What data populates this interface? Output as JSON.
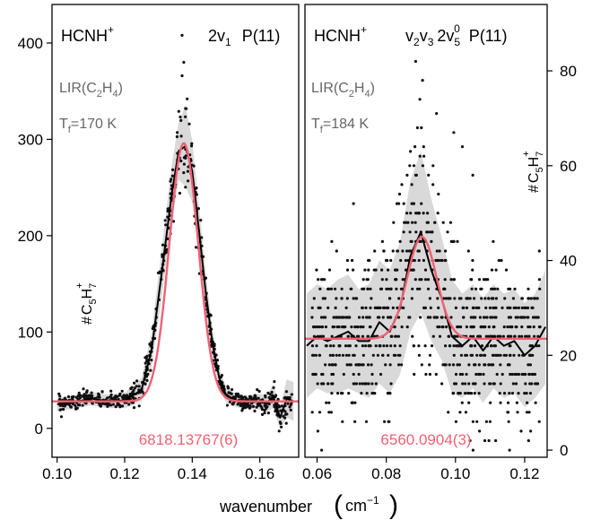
{
  "figure": {
    "xlabel_main": "wavenumber",
    "xlabel_unit_base": "cm",
    "xlabel_unit_exp": "−1",
    "colors": {
      "fit": "#f26071",
      "band": "#d9d9d9",
      "data": "#111111",
      "axis": "#000000",
      "annotation": "#666666"
    }
  },
  "chart_data": [
    {
      "type": "scatter",
      "panel": "left",
      "y_axis_side": "left",
      "molecule": "HCNH",
      "molecule_charge": "+",
      "transition_text": "2v",
      "transition_sub": "1",
      "transition_line": "P(11)",
      "source_main": "LIR(C",
      "source_sub1": "2",
      "source_mid": "H",
      "source_sub2": "4",
      "source_end": ")",
      "temp_main": "T",
      "temp_sub": "f",
      "temp_value": "=170 K",
      "ylabel_hash": "#",
      "ylabel_C": "C",
      "ylabel_sub5": "5",
      "ylabel_H": "H",
      "ylabel_sub7": "7",
      "ylabel_charge": "+",
      "line_center_label": "6818.13767(6)",
      "xlim": [
        0.0985,
        0.1715
      ],
      "ylim": [
        -30,
        440
      ],
      "xticks": [
        "0.10",
        "0.12",
        "0.14",
        "0.16"
      ],
      "xtick_values": [
        0.1,
        0.12,
        0.14,
        0.16
      ],
      "yticks": [
        "0",
        "100",
        "200",
        "300",
        "400"
      ],
      "ytick_values": [
        0,
        100,
        200,
        300,
        400
      ],
      "fit": {
        "baseline": 28,
        "amplitude": 268,
        "center": 0.1375,
        "sigma": 0.0043
      },
      "mean_x": [
        0.1,
        0.105,
        0.11,
        0.115,
        0.12,
        0.125,
        0.128,
        0.131,
        0.134,
        0.136,
        0.138,
        0.14,
        0.142,
        0.144,
        0.146,
        0.148,
        0.15,
        0.153,
        0.156,
        0.159,
        0.162,
        0.164,
        0.166,
        0.168,
        0.17
      ],
      "mean_y": [
        25,
        27,
        31,
        28,
        29,
        40,
        82,
        162,
        245,
        288,
        293,
        267,
        205,
        141,
        88,
        52,
        35,
        29,
        27,
        28,
        26,
        33,
        11,
        31,
        28
      ],
      "band_halfwidth": [
        7,
        7,
        7,
        7,
        8,
        12,
        18,
        25,
        30,
        30,
        42,
        32,
        25,
        20,
        15,
        10,
        8,
        7,
        7,
        8,
        9,
        12,
        12,
        20,
        20
      ],
      "outliers": [
        {
          "x": 0.137,
          "y": 408
        },
        {
          "x": 0.1375,
          "y": 380
        },
        {
          "x": 0.137,
          "y": 366
        },
        {
          "x": 0.1385,
          "y": 342
        },
        {
          "x": 0.138,
          "y": 332
        }
      ]
    },
    {
      "type": "scatter",
      "panel": "right",
      "y_axis_side": "right",
      "molecule": "HCNH",
      "molecule_charge": "+",
      "mode_v2": "v",
      "mode_v2_sub": "2",
      "mode_v3": "v",
      "mode_v3_sub": "3",
      "mode_2v5": "2v",
      "mode_2v5_sub": "5",
      "mode_2v5_sup": "0",
      "transition_line": "P(11)",
      "source_main": "LIR(C",
      "source_sub1": "2",
      "source_mid": "H",
      "source_sub2": "4",
      "source_end": ")",
      "temp_main": "T",
      "temp_sub": "f",
      "temp_value": "=184 K",
      "ylabel_hash": "#",
      "ylabel_C": "C",
      "ylabel_sub5": "5",
      "ylabel_H": "H",
      "ylabel_sub7": "7",
      "ylabel_charge": "+",
      "line_center_label": "6560.0904(3)",
      "xlim": [
        0.0565,
        0.1265
      ],
      "ylim": [
        -1.5,
        94
      ],
      "xticks": [
        "0.06",
        "0.08",
        "0.10",
        "0.12"
      ],
      "xtick_values": [
        0.06,
        0.08,
        0.1,
        0.12
      ],
      "yticks": [
        "0",
        "20",
        "40",
        "60",
        "80"
      ],
      "ytick_values": [
        0,
        20,
        40,
        60,
        80
      ],
      "fit": {
        "baseline": 23.5,
        "amplitude": 21.5,
        "center": 0.0903,
        "sigma": 0.0042
      },
      "mean_x": [
        0.057,
        0.06,
        0.063,
        0.066,
        0.069,
        0.072,
        0.075,
        0.078,
        0.081,
        0.084,
        0.087,
        0.09,
        0.093,
        0.096,
        0.099,
        0.102,
        0.105,
        0.108,
        0.111,
        0.114,
        0.117,
        0.12,
        0.123,
        0.126
      ],
      "mean_y": [
        22,
        24,
        23,
        24,
        25,
        23,
        23,
        27,
        25,
        30,
        41,
        46,
        38,
        32,
        24,
        22,
        24,
        21,
        24,
        22,
        23,
        20,
        22,
        26
      ],
      "band_halfwidth": [
        11,
        11,
        11,
        12,
        12,
        11,
        12,
        13,
        13,
        14,
        16,
        17,
        15,
        13,
        12,
        11,
        11,
        11,
        11,
        11,
        11,
        11,
        11,
        12
      ],
      "outliers": [
        {
          "x": 0.0885,
          "y": 82
        },
        {
          "x": 0.0905,
          "y": 78
        },
        {
          "x": 0.0945,
          "y": 71
        },
        {
          "x": 0.089,
          "y": 68
        },
        {
          "x": 0.0995,
          "y": 67
        },
        {
          "x": 0.102,
          "y": 64
        },
        {
          "x": 0.087,
          "y": 63
        },
        {
          "x": 0.105,
          "y": 58
        }
      ]
    }
  ]
}
